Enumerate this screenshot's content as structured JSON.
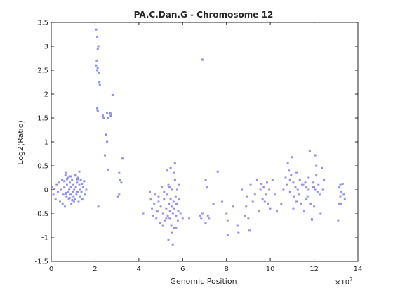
{
  "chart_data": {
    "type": "scatter",
    "title": "PA.C.Dan.G - Chromosome 12",
    "xlabel": "Genomic Position",
    "ylabel": "Log2(Ratio)",
    "x_exponent_label": "×10",
    "x_exponent_power": "7",
    "xlim": [
      0,
      14
    ],
    "ylim": [
      -1.5,
      3.5
    ],
    "xticks": [
      "0",
      "2",
      "4",
      "6",
      "8",
      "10",
      "12",
      "14"
    ],
    "yticks": [
      "-1.5",
      "-1",
      "-0.5",
      "0",
      "0.5",
      "1",
      "1.5",
      "2",
      "2.5",
      "3",
      "3.5"
    ],
    "grid": false,
    "marker_color": "#8f8fec",
    "series": [
      {
        "x_unit": "×1e7",
        "points": [
          [
            0.05,
            0.05
          ],
          [
            0.1,
            -0.1
          ],
          [
            0.15,
            0.02
          ],
          [
            0.2,
            -0.2
          ],
          [
            0.25,
            0.1
          ],
          [
            0.3,
            -0.05
          ],
          [
            0.35,
            0.15
          ],
          [
            0.4,
            -0.25
          ],
          [
            0.45,
            0.0
          ],
          [
            0.5,
            0.2
          ],
          [
            0.55,
            -0.1
          ],
          [
            0.6,
            0.05
          ],
          [
            0.62,
            -0.35
          ],
          [
            0.65,
            0.3
          ],
          [
            0.7,
            -0.15
          ],
          [
            0.72,
            0.1
          ],
          [
            0.75,
            -0.05
          ],
          [
            0.78,
            0.25
          ],
          [
            0.8,
            -0.2
          ],
          [
            0.82,
            0.0
          ],
          [
            0.85,
            0.15
          ],
          [
            0.88,
            -0.1
          ],
          [
            0.9,
            0.05
          ],
          [
            0.92,
            -0.3
          ],
          [
            0.95,
            0.2
          ],
          [
            0.98,
            -0.05
          ],
          [
            1.0,
            0.1
          ],
          [
            1.02,
            -0.15
          ],
          [
            1.05,
            0.0
          ],
          [
            1.08,
            0.3
          ],
          [
            1.1,
            -0.2
          ],
          [
            1.12,
            0.05
          ],
          [
            1.15,
            -0.1
          ],
          [
            1.18,
            0.15
          ],
          [
            1.2,
            -0.05
          ],
          [
            1.22,
            0.25
          ],
          [
            1.25,
            -0.25
          ],
          [
            1.28,
            0.1
          ],
          [
            1.3,
            0.0
          ],
          [
            1.32,
            -0.15
          ],
          [
            1.35,
            0.2
          ],
          [
            1.38,
            -0.05
          ],
          [
            1.4,
            0.12
          ],
          [
            1.42,
            -0.2
          ],
          [
            1.45,
            0.05
          ],
          [
            1.5,
            0.18
          ],
          [
            1.55,
            -0.1
          ],
          [
            1.6,
            0.0
          ],
          [
            0.68,
            0.35
          ],
          [
            0.52,
            -0.3
          ],
          [
            0.72,
            0.22
          ],
          [
            0.88,
            0.28
          ],
          [
            1.12,
            0.3
          ],
          [
            1.28,
            0.38
          ],
          [
            0.96,
            -0.22
          ],
          [
            0.6,
            0.18
          ],
          [
            0.66,
            -0.08
          ],
          [
            0.84,
            -0.18
          ],
          [
            1.04,
            -0.25
          ],
          [
            1.2,
            0.22
          ],
          [
            2.05,
            3.35
          ],
          [
            2.1,
            3.2
          ],
          [
            2.12,
            2.95
          ],
          [
            2.15,
            3.0
          ],
          [
            2.08,
            2.7
          ],
          [
            2.1,
            2.5
          ],
          [
            2.12,
            2.55
          ],
          [
            2.05,
            2.6
          ],
          [
            2.18,
            2.45
          ],
          [
            2.2,
            2.25
          ],
          [
            2.22,
            2.2
          ],
          [
            2.1,
            1.7
          ],
          [
            2.12,
            1.65
          ],
          [
            2.35,
            1.55
          ],
          [
            2.4,
            1.5
          ],
          [
            2.55,
            1.6
          ],
          [
            2.6,
            1.5
          ],
          [
            2.7,
            1.6
          ],
          [
            2.72,
            1.55
          ],
          [
            2.8,
            1.98
          ],
          [
            2.5,
            1.15
          ],
          [
            2.55,
            1.0
          ],
          [
            2.45,
            0.72
          ],
          [
            2.6,
            0.42
          ],
          [
            3.25,
            0.65
          ],
          [
            3.1,
            0.35
          ],
          [
            3.15,
            0.2
          ],
          [
            3.2,
            0.15
          ],
          [
            3.1,
            -0.1
          ],
          [
            3.05,
            -0.15
          ],
          [
            2.15,
            -0.35
          ],
          [
            4.2,
            -0.5
          ],
          [
            4.5,
            -0.05
          ],
          [
            4.55,
            -0.2
          ],
          [
            4.6,
            -0.4
          ],
          [
            4.65,
            -0.55
          ],
          [
            4.7,
            -0.3
          ],
          [
            4.75,
            -0.1
          ],
          [
            4.8,
            -0.6
          ],
          [
            4.85,
            -0.45
          ],
          [
            4.9,
            -0.25
          ],
          [
            4.95,
            -0.7
          ],
          [
            5.0,
            -0.35
          ],
          [
            5.05,
            0.05
          ],
          [
            5.1,
            -0.5
          ],
          [
            5.15,
            -0.2
          ],
          [
            5.2,
            -0.65
          ],
          [
            5.25,
            -0.4
          ],
          [
            5.3,
            -0.1
          ],
          [
            5.32,
            -0.55
          ],
          [
            5.35,
            0.1
          ],
          [
            5.38,
            -0.3
          ],
          [
            5.4,
            -0.6
          ],
          [
            5.42,
            -0.45
          ],
          [
            5.45,
            -0.2
          ],
          [
            5.48,
            -0.75
          ],
          [
            5.5,
            -0.35
          ],
          [
            5.52,
            0.0
          ],
          [
            5.55,
            -0.5
          ],
          [
            5.58,
            -0.25
          ],
          [
            5.6,
            0.35
          ],
          [
            5.62,
            -0.4
          ],
          [
            5.65,
            0.2
          ],
          [
            5.68,
            -0.15
          ],
          [
            5.7,
            -0.55
          ],
          [
            5.72,
            -0.3
          ],
          [
            5.75,
            0.0
          ],
          [
            5.78,
            -0.65
          ],
          [
            5.8,
            -0.45
          ],
          [
            5.82,
            0.1
          ],
          [
            5.85,
            -0.2
          ],
          [
            5.55,
            -1.15
          ],
          [
            5.35,
            -1.05
          ],
          [
            5.5,
            -0.9
          ],
          [
            5.45,
            0.45
          ],
          [
            5.3,
            0.4
          ],
          [
            5.65,
            0.55
          ],
          [
            5.6,
            -0.8
          ],
          [
            5.25,
            -0.6
          ],
          [
            5.9,
            -0.5
          ],
          [
            6.0,
            -0.6
          ],
          [
            5.15,
            -0.05
          ],
          [
            5.4,
            0.05
          ],
          [
            5.7,
            -0.8
          ],
          [
            4.9,
            -0.15
          ],
          [
            5.1,
            -0.75
          ],
          [
            6.3,
            -0.6
          ],
          [
            6.8,
            -0.55
          ],
          [
            6.85,
            -0.6
          ],
          [
            6.9,
            -0.5
          ],
          [
            6.9,
            2.72
          ],
          [
            7.05,
            0.2
          ],
          [
            7.1,
            0.05
          ],
          [
            7.05,
            -0.7
          ],
          [
            7.15,
            -0.55
          ],
          [
            7.2,
            -0.6
          ],
          [
            7.4,
            -0.3
          ],
          [
            7.6,
            0.38
          ],
          [
            7.8,
            -0.25
          ],
          [
            8.0,
            -0.5
          ],
          [
            8.05,
            -0.65
          ],
          [
            8.05,
            -0.95
          ],
          [
            8.3,
            -0.35
          ],
          [
            8.5,
            -0.75
          ],
          [
            8.55,
            -0.9
          ],
          [
            8.7,
            0.0
          ],
          [
            8.85,
            -0.55
          ],
          [
            8.9,
            -0.35
          ],
          [
            8.95,
            -0.15
          ],
          [
            9.0,
            -0.6
          ],
          [
            9.05,
            -0.85
          ],
          [
            9.1,
            0.1
          ],
          [
            9.2,
            -0.25
          ],
          [
            9.3,
            -0.1
          ],
          [
            9.4,
            0.2
          ],
          [
            9.5,
            -0.45
          ],
          [
            9.55,
            0.0
          ],
          [
            9.6,
            0.12
          ],
          [
            9.65,
            -0.2
          ],
          [
            9.7,
            0.05
          ],
          [
            9.75,
            -0.25
          ],
          [
            9.8,
            -0.1
          ],
          [
            9.85,
            0.15
          ],
          [
            9.9,
            -0.3
          ],
          [
            9.95,
            0.0
          ],
          [
            10.0,
            -0.4
          ],
          [
            10.1,
            0.2
          ],
          [
            10.2,
            -0.1
          ],
          [
            10.3,
            -0.45
          ],
          [
            10.5,
            -0.3
          ],
          [
            10.6,
            0.0
          ],
          [
            10.7,
            0.25
          ],
          [
            10.75,
            0.1
          ],
          [
            10.8,
            0.55
          ],
          [
            10.85,
            0.4
          ],
          [
            10.9,
            -0.05
          ],
          [
            10.95,
            0.3
          ],
          [
            11.0,
            0.68
          ],
          [
            11.05,
            0.15
          ],
          [
            11.1,
            -0.15
          ],
          [
            11.15,
            0.05
          ],
          [
            11.2,
            0.35
          ],
          [
            11.25,
            0.0
          ],
          [
            11.3,
            -0.1
          ],
          [
            11.35,
            0.2
          ],
          [
            11.4,
            -0.3
          ],
          [
            11.5,
            0.1
          ],
          [
            11.6,
            0.15
          ],
          [
            11.65,
            0.05
          ],
          [
            11.7,
            -0.15
          ],
          [
            11.75,
            0.25
          ],
          [
            11.8,
            0.8
          ],
          [
            11.85,
            -0.3
          ],
          [
            11.9,
            -0.62
          ],
          [
            11.95,
            0.15
          ],
          [
            12.0,
            0.05
          ],
          [
            12.05,
            0.72
          ],
          [
            12.1,
            0.3
          ],
          [
            12.15,
            -0.05
          ],
          [
            12.2,
            0.1
          ],
          [
            12.25,
            -0.1
          ],
          [
            12.3,
            -0.5
          ],
          [
            12.35,
            0.45
          ],
          [
            12.4,
            0.0
          ],
          [
            12.45,
            0.2
          ],
          [
            11.55,
            -0.45
          ],
          [
            11.65,
            -0.2
          ],
          [
            12.0,
            -0.35
          ],
          [
            11.95,
            0.05
          ],
          [
            12.1,
            0.5
          ],
          [
            11.75,
            0.0
          ],
          [
            11.2,
            -0.25
          ],
          [
            10.9,
            0.2
          ],
          [
            11.05,
            -0.4
          ],
          [
            11.45,
            0.1
          ],
          [
            12.05,
            0.0
          ],
          [
            13.1,
            -0.65
          ],
          [
            13.15,
            -0.3
          ],
          [
            13.2,
            0.1
          ],
          [
            13.25,
            -0.05
          ],
          [
            13.3,
            0.12
          ],
          [
            13.35,
            -0.1
          ],
          [
            13.4,
            -0.2
          ],
          [
            13.15,
            0.05
          ],
          [
            13.2,
            -0.15
          ],
          [
            13.25,
            -0.3
          ]
        ]
      }
    ]
  }
}
